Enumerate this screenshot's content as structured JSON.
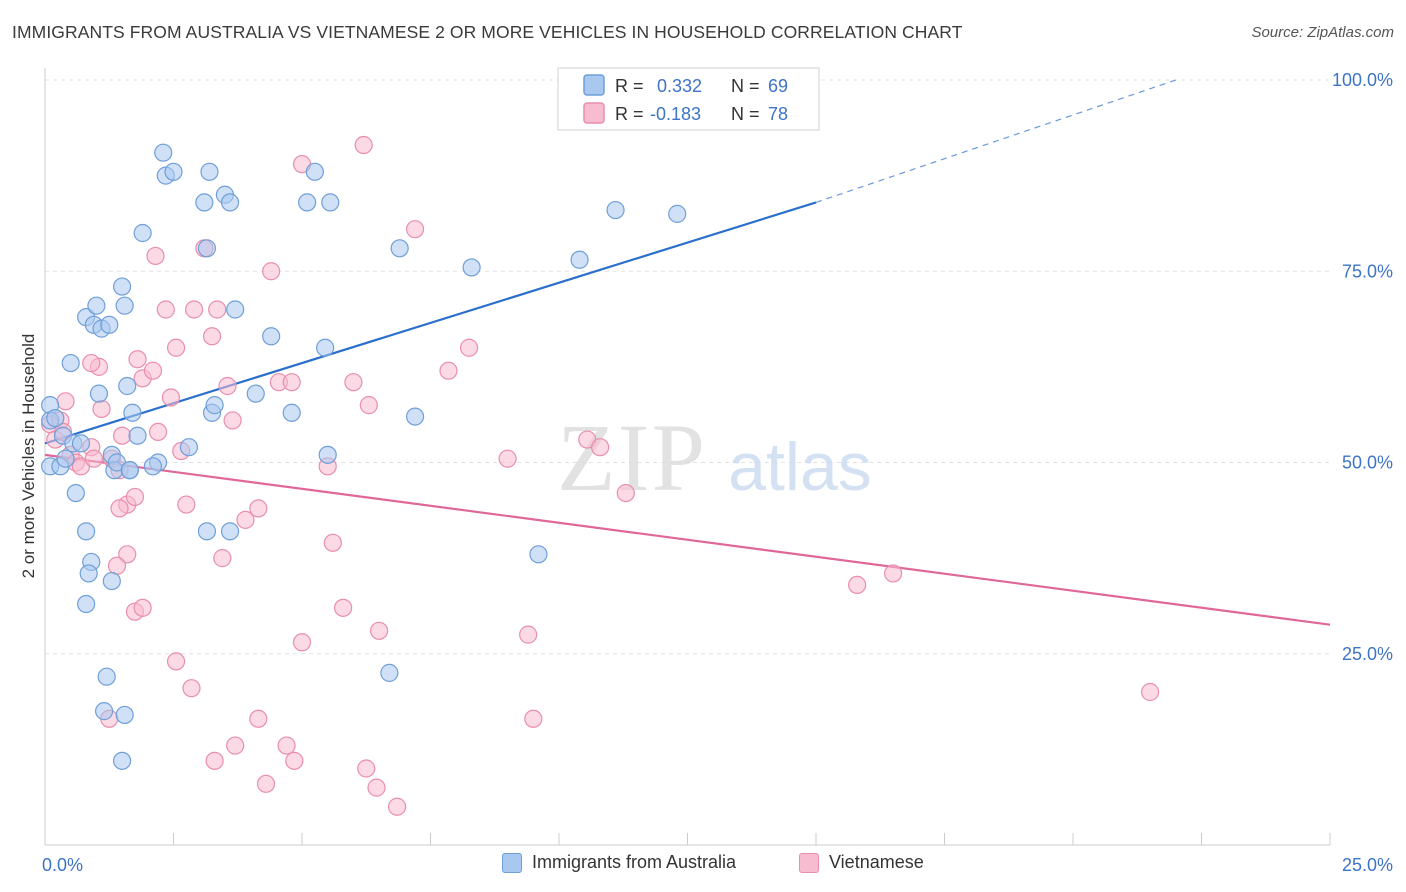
{
  "header": {
    "title": "IMMIGRANTS FROM AUSTRALIA VS VIETNAMESE 2 OR MORE VEHICLES IN HOUSEHOLD CORRELATION CHART",
    "source": "Source: ZipAtlas.com"
  },
  "watermark": {
    "zip": "ZIP",
    "atlas": "atlas"
  },
  "colors": {
    "blue_fill": "#a9c8f0",
    "blue_stroke": "#6f9fd8",
    "blue_line": "#2b6fcc",
    "pink_fill": "#f7bccf",
    "pink_stroke": "#e98eac",
    "pink_line": "#e0679a",
    "axis_text_blue": "#3d74c7",
    "grid": "#e2e2e2"
  },
  "legend": {
    "rows": [
      {
        "r_label": "R =",
        "r_value": "0.332",
        "n_label": "N =",
        "n_value": "69"
      },
      {
        "r_label": "R =",
        "r_value": "-0.183",
        "n_label": "N =",
        "n_value": "78"
      }
    ]
  },
  "chart_data": {
    "type": "scatter",
    "xlabel": "",
    "ylabel": "2 or more Vehicles in Household",
    "xlim": [
      0,
      25
    ],
    "ylim": [
      0,
      100
    ],
    "x_tick_labels": [
      "0.0%",
      "25.0%"
    ],
    "y_tick_labels": [
      "25.0%",
      "50.0%",
      "75.0%",
      "100.0%"
    ],
    "y_ticks": [
      25,
      50,
      75,
      100
    ],
    "grid": true,
    "legend_position": "top-center",
    "series": [
      {
        "name": "Immigrants from Australia",
        "color": "blue",
        "R": 0.332,
        "N": 69,
        "trend": {
          "x": [
            0,
            15
          ],
          "y": [
            52.5,
            84.0
          ],
          "dashed_to": {
            "x": 22,
            "y": 100
          }
        },
        "points": [
          [
            0.1,
            57.5
          ],
          [
            0.1,
            55.5
          ],
          [
            0.1,
            49.5
          ],
          [
            0.2,
            55.8
          ],
          [
            0.3,
            49.5
          ],
          [
            0.35,
            53.5
          ],
          [
            0.4,
            50.5
          ],
          [
            0.55,
            52.5
          ],
          [
            0.5,
            63
          ],
          [
            0.6,
            46
          ],
          [
            0.8,
            69
          ],
          [
            0.95,
            68
          ],
          [
            1.0,
            70.5
          ],
          [
            1.05,
            59
          ],
          [
            1.1,
            67.5
          ],
          [
            1.25,
            68
          ],
          [
            1.3,
            51
          ],
          [
            1.35,
            49
          ],
          [
            1.4,
            50
          ],
          [
            1.5,
            73
          ],
          [
            1.55,
            70.5
          ],
          [
            1.6,
            60
          ],
          [
            1.65,
            49
          ],
          [
            1.65,
            49
          ],
          [
            1.7,
            56.5
          ],
          [
            1.8,
            53.5
          ],
          [
            1.9,
            80
          ],
          [
            2.2,
            50
          ],
          [
            2.3,
            90.5
          ],
          [
            2.35,
            87.5
          ],
          [
            2.5,
            88
          ],
          [
            2.8,
            52
          ],
          [
            3.1,
            84
          ],
          [
            3.15,
            78
          ],
          [
            3.2,
            88
          ],
          [
            3.25,
            56.5
          ],
          [
            3.3,
            57.5
          ],
          [
            3.5,
            85
          ],
          [
            3.6,
            84
          ],
          [
            3.7,
            70
          ],
          [
            4.1,
            59
          ],
          [
            4.4,
            66.5
          ],
          [
            4.8,
            56.5
          ],
          [
            5.1,
            84
          ],
          [
            5.25,
            88
          ],
          [
            5.45,
            65
          ],
          [
            5.5,
            51
          ],
          [
            5.55,
            84
          ],
          [
            6.9,
            78
          ],
          [
            7.2,
            56
          ],
          [
            8.3,
            75.5
          ],
          [
            9.6,
            38
          ],
          [
            10.4,
            76.5
          ],
          [
            11.1,
            83
          ],
          [
            12.3,
            82.5
          ],
          [
            0.8,
            41
          ],
          [
            0.9,
            37
          ],
          [
            0.85,
            35.5
          ],
          [
            1.3,
            34.5
          ],
          [
            0.8,
            31.5
          ],
          [
            1.2,
            22
          ],
          [
            1.15,
            17.5
          ],
          [
            1.55,
            17
          ],
          [
            1.5,
            11
          ],
          [
            3.15,
            41
          ],
          [
            3.6,
            41
          ],
          [
            6.7,
            22.5
          ],
          [
            2.1,
            49.5
          ],
          [
            0.7,
            52.5
          ]
        ]
      },
      {
        "name": "Vietnamese",
        "color": "pink",
        "R": -0.183,
        "N": 78,
        "trend": {
          "x": [
            0,
            25
          ],
          "y": [
            51,
            28.8
          ]
        },
        "points": [
          [
            0.1,
            55
          ],
          [
            0.2,
            53
          ],
          [
            0.3,
            55.5
          ],
          [
            0.35,
            54
          ],
          [
            0.4,
            58
          ],
          [
            0.5,
            51
          ],
          [
            0.6,
            50
          ],
          [
            0.7,
            49.5
          ],
          [
            0.9,
            52
          ],
          [
            0.95,
            50.5
          ],
          [
            1.05,
            62.5
          ],
          [
            1.1,
            57
          ],
          [
            1.3,
            50.5
          ],
          [
            1.45,
            49
          ],
          [
            1.5,
            53.5
          ],
          [
            1.6,
            44.5
          ],
          [
            1.75,
            45.5
          ],
          [
            1.8,
            63.5
          ],
          [
            1.9,
            61
          ],
          [
            2.1,
            62
          ],
          [
            2.15,
            77
          ],
          [
            2.2,
            54
          ],
          [
            2.35,
            70
          ],
          [
            2.45,
            58.5
          ],
          [
            2.55,
            65
          ],
          [
            2.65,
            51.5
          ],
          [
            2.9,
            70
          ],
          [
            3.1,
            78
          ],
          [
            3.25,
            66.5
          ],
          [
            3.35,
            70
          ],
          [
            3.55,
            60
          ],
          [
            3.65,
            55.5
          ],
          [
            3.9,
            42.5
          ],
          [
            4.15,
            44
          ],
          [
            4.4,
            75
          ],
          [
            4.55,
            60.5
          ],
          [
            4.8,
            60.5
          ],
          [
            5.0,
            89
          ],
          [
            5.5,
            49.5
          ],
          [
            5.6,
            39.5
          ],
          [
            6.0,
            60.5
          ],
          [
            6.2,
            91.5
          ],
          [
            6.3,
            57.5
          ],
          [
            6.5,
            28
          ],
          [
            7.2,
            80.5
          ],
          [
            7.85,
            62
          ],
          [
            8.25,
            65
          ],
          [
            9.0,
            50.5
          ],
          [
            9.4,
            27.5
          ],
          [
            9.5,
            16.5
          ],
          [
            10.55,
            53
          ],
          [
            10.8,
            52
          ],
          [
            11.3,
            46
          ],
          [
            15.8,
            34
          ],
          [
            16.5,
            35.5
          ],
          [
            21.5,
            20
          ],
          [
            1.6,
            38
          ],
          [
            1.75,
            30.5
          ],
          [
            1.9,
            31
          ],
          [
            1.4,
            36.5
          ],
          [
            1.25,
            16.5
          ],
          [
            2.55,
            24
          ],
          [
            2.85,
            20.5
          ],
          [
            3.3,
            11
          ],
          [
            3.7,
            13
          ],
          [
            4.15,
            16.5
          ],
          [
            4.3,
            8
          ],
          [
            4.7,
            13
          ],
          [
            4.85,
            11
          ],
          [
            5.0,
            26.5
          ],
          [
            5.8,
            31
          ],
          [
            6.25,
            10
          ],
          [
            6.45,
            7.5
          ],
          [
            6.85,
            5
          ],
          [
            1.45,
            44
          ],
          [
            0.9,
            63
          ],
          [
            3.45,
            37.5
          ],
          [
            2.75,
            44.5
          ]
        ]
      }
    ]
  },
  "bottom_legend": {
    "items": [
      "Immigrants from Australia",
      "Vietnamese"
    ]
  }
}
